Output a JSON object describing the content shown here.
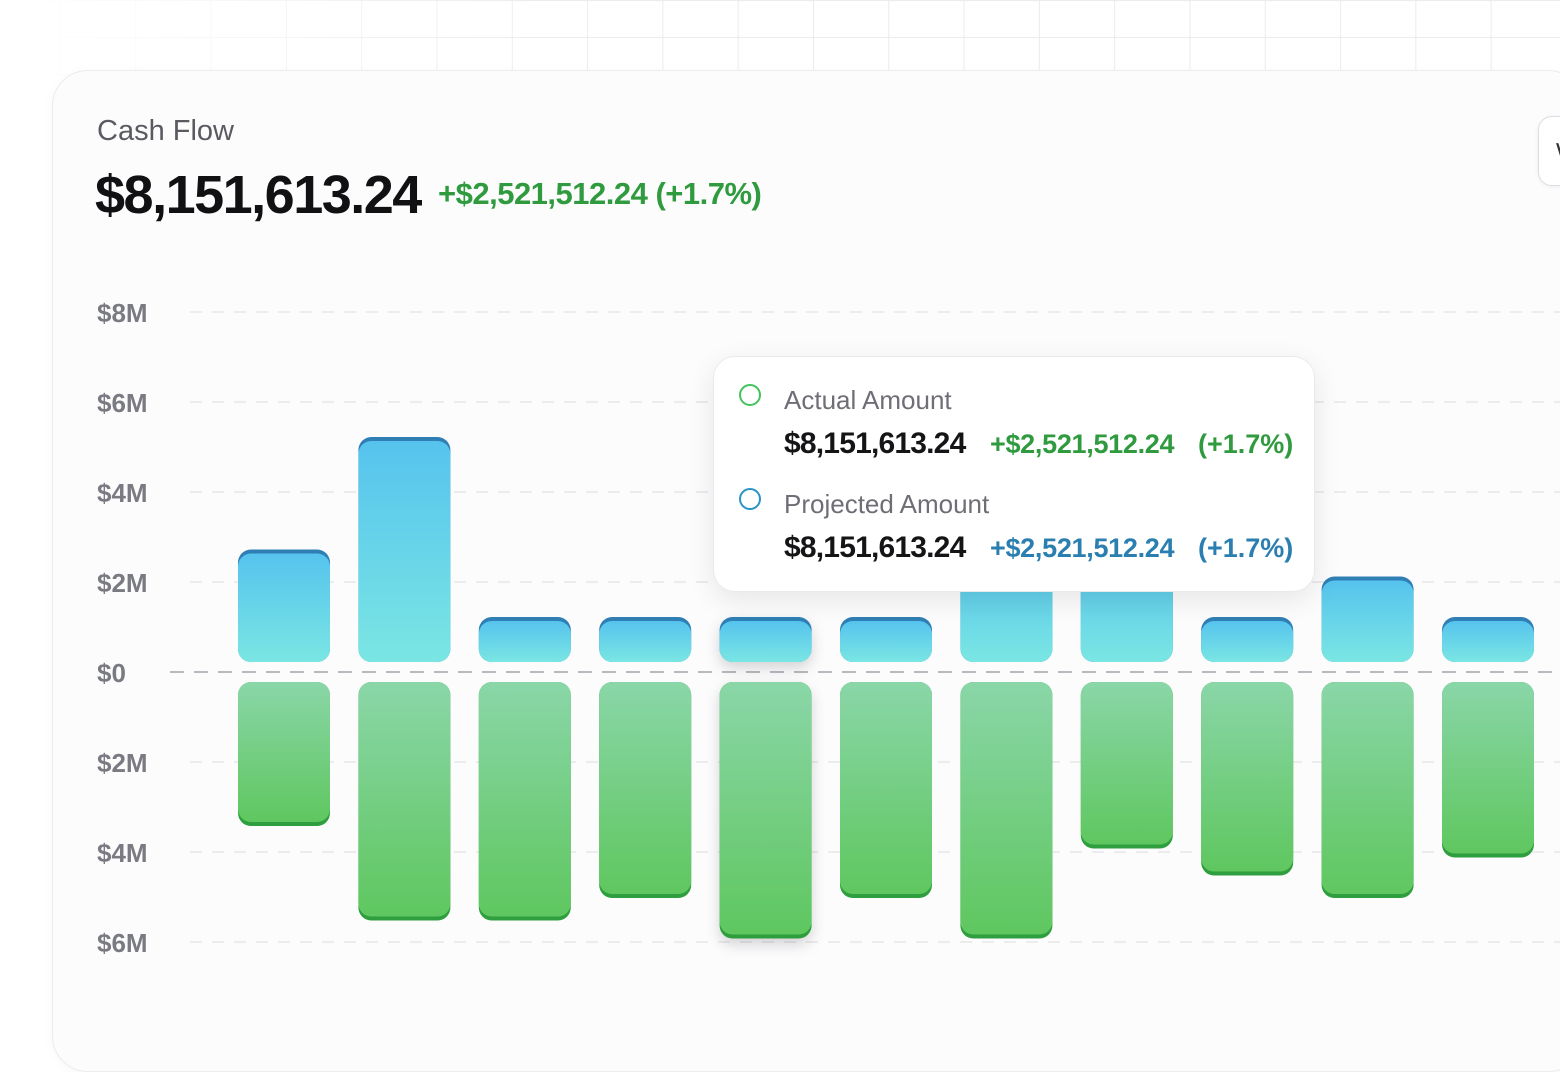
{
  "card": {
    "title": "Cash Flow",
    "total_value": "$8,151,613.24",
    "total_change": "+$2,521,512.24 (+1.7%)"
  },
  "tooltip": {
    "actual": {
      "label": "Actual Amount",
      "value": "$8,151,613.24",
      "change": "+$2,521,512.24",
      "percent": "(+1.7%)"
    },
    "projected": {
      "label": "Projected Amount",
      "value": "$8,151,613.24",
      "change": "+$2,521,512.24",
      "percent": "(+1.7%)"
    }
  },
  "colors": {
    "projected_top": "#56c3ee",
    "projected_bottom": "#7ae6e3",
    "projected_cap": "#2f7fb4",
    "actual_top": "#8ad6a8",
    "actual_bottom": "#5fc75f",
    "actual_cap": "#2e9e3e",
    "positive_text": "#2f9a3e",
    "projected_text": "#2a7fb0"
  },
  "chart_data": {
    "type": "bar",
    "y_tick_labels": [
      "$8M",
      "$6M",
      "$4M",
      "$2M",
      "$0",
      "$2M",
      "$4M",
      "$6M"
    ],
    "y_tick_values": [
      8,
      6,
      4,
      2,
      0,
      -2,
      -4,
      -6
    ],
    "ylim": [
      -6,
      8
    ],
    "y_unit": "millions USD",
    "grid": true,
    "highlighted_index": 4,
    "series": [
      {
        "values": [
          2.5,
          5.0,
          1.0,
          1.0,
          1.0,
          1.0,
          2.5,
          2.5,
          1.0,
          1.9,
          1.0
        ]
      },
      {
        "values": [
          -3.2,
          -5.3,
          -5.3,
          -4.8,
          -5.7,
          -4.8,
          -5.7,
          -3.7,
          -4.3,
          -4.8,
          -3.9
        ]
      }
    ]
  }
}
